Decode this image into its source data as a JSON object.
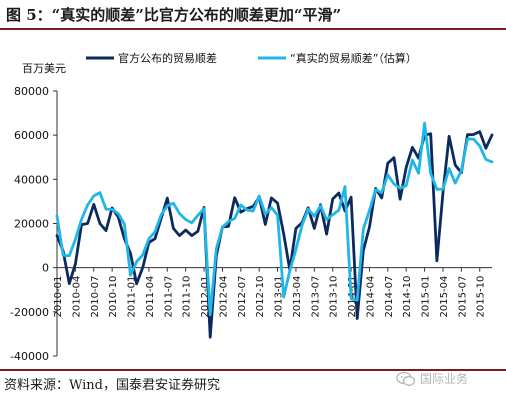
{
  "header": {
    "title": "图 5：“真实的顺差”比官方公布的顺差更加“平滑”"
  },
  "source": {
    "text": "资料来源：Wind，国泰君安证券研究"
  },
  "watermark": {
    "text": "国际业务",
    "icon": "wechat-icon"
  },
  "chart_data": {
    "type": "line",
    "unit_label": "百万美元",
    "ylim": [
      -40000,
      80000
    ],
    "yticks": [
      -40000,
      -20000,
      0,
      20000,
      40000,
      60000,
      80000
    ],
    "ytick_labels": [
      "-40000",
      "-20000",
      "0",
      "20000",
      "40000",
      "60000",
      "80000"
    ],
    "x": [
      "2010-01",
      "2010-02",
      "2010-03",
      "2010-04",
      "2010-05",
      "2010-06",
      "2010-07",
      "2010-08",
      "2010-09",
      "2010-10",
      "2010-11",
      "2010-12",
      "2011-01",
      "2011-02",
      "2011-03",
      "2011-04",
      "2011-05",
      "2011-06",
      "2011-07",
      "2011-08",
      "2011-09",
      "2011-10",
      "2011-11",
      "2011-12",
      "2012-01",
      "2012-02",
      "2012-03",
      "2012-04",
      "2012-05",
      "2012-06",
      "2012-07",
      "2012-08",
      "2012-09",
      "2012-10",
      "2012-11",
      "2012-12",
      "2013-01",
      "2013-02",
      "2013-03",
      "2013-04",
      "2013-05",
      "2013-06",
      "2013-07",
      "2013-08",
      "2013-09",
      "2013-10",
      "2013-11",
      "2013-12",
      "2014-01",
      "2014-02",
      "2014-03",
      "2014-04",
      "2014-05",
      "2014-06",
      "2014-07",
      "2014-08",
      "2014-09",
      "2014-10",
      "2014-11",
      "2014-12",
      "2015-01",
      "2015-02",
      "2015-03",
      "2015-04",
      "2015-05",
      "2015-06",
      "2015-07",
      "2015-08",
      "2015-09",
      "2015-10",
      "2015-11",
      "2015-12"
    ],
    "xtick_labels": [
      "2010-01",
      "2010-04",
      "2010-07",
      "2010-10",
      "2011-01",
      "2011-04",
      "2011-07",
      "2011-10",
      "2012-01",
      "2012-04",
      "2012-07",
      "2012-10",
      "2013-01",
      "2013-04",
      "2013-07",
      "2013-10",
      "2014-01",
      "2014-04",
      "2014-07",
      "2014-10",
      "2015-01",
      "2015-04",
      "2015-07",
      "2015-10"
    ],
    "series": [
      {
        "name": "官方公布的贸易顺差",
        "color": "#0d2a5c",
        "width": 2.8,
        "values": [
          14500,
          7600,
          -7200,
          1700,
          19500,
          20000,
          28700,
          20000,
          16800,
          27000,
          22900,
          13100,
          6500,
          -7300,
          100,
          11400,
          13100,
          22300,
          31500,
          17800,
          14500,
          17000,
          14500,
          16500,
          27300,
          -31500,
          5300,
          18400,
          18700,
          31700,
          25100,
          26700,
          27700,
          32000,
          19600,
          31600,
          29200,
          15300,
          -1000,
          17800,
          20400,
          27100,
          17800,
          28500,
          15200,
          31100,
          33800,
          25600,
          31900,
          -23000,
          7700,
          18500,
          35900,
          31600,
          47300,
          49800,
          31000,
          45400,
          54500,
          49600,
          60000,
          60600,
          3100,
          34100,
          59500,
          46500,
          43000,
          60200,
          60300,
          61600,
          54100,
          60100
        ]
      },
      {
        "name": "“真实的贸易顺差”（估算）",
        "color": "#1fb6e8",
        "width": 2.8,
        "values": [
          23500,
          5600,
          5400,
          12800,
          21800,
          28400,
          32500,
          34000,
          26500,
          26400,
          24500,
          19700,
          -3400,
          2700,
          5800,
          13100,
          16200,
          24000,
          28000,
          29200,
          24500,
          21800,
          20300,
          23700,
          26700,
          -21400,
          8500,
          18300,
          20900,
          22300,
          28400,
          26100,
          25600,
          32500,
          24200,
          27200,
          23700,
          -13300,
          -1400,
          8200,
          19300,
          26500,
          23300,
          28000,
          21800,
          24000,
          26000,
          36700,
          -14000,
          -14700,
          17400,
          26000,
          35300,
          34000,
          42000,
          37900,
          36000,
          37100,
          48700,
          42800,
          65400,
          42700,
          35500,
          35600,
          44900,
          38300,
          44000,
          58300,
          58200,
          55100,
          49000,
          47900
        ]
      }
    ]
  }
}
